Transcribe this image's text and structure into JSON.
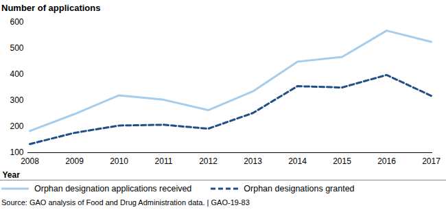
{
  "chart_data": {
    "type": "line",
    "y_label": "Number of applications",
    "x_label": "Year",
    "source": "Source: GAO analysis of Food and Drug Administration data.  |  GAO-19-83",
    "categories": [
      "2008",
      "2009",
      "2010",
      "2011",
      "2012",
      "2013",
      "2014",
      "2015",
      "2016",
      "2017"
    ],
    "series": [
      {
        "name": "Orphan designation applications received",
        "color": "#a5cdee",
        "line_style": "solid",
        "values": [
          183,
          248,
          320,
          303,
          263,
          335,
          449,
          467,
          568,
          525
        ]
      },
      {
        "name": "Orphan designations granted",
        "color": "#1f4e89",
        "line_style": "dashed",
        "values": [
          133,
          176,
          204,
          207,
          192,
          252,
          355,
          350,
          398,
          318
        ]
      }
    ],
    "ylim": [
      100,
      600
    ],
    "yticks": [
      100,
      200,
      300,
      400,
      500,
      600
    ],
    "grid": false,
    "legend": "bottom"
  }
}
